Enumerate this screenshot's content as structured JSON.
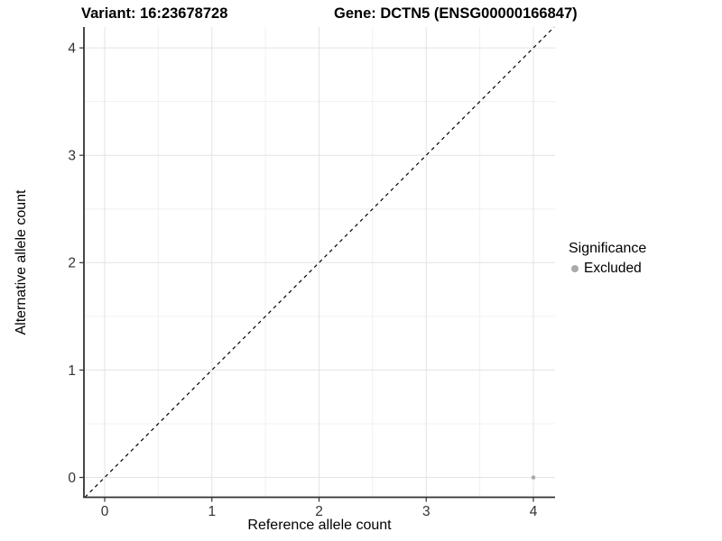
{
  "header": {
    "variant_title": "Variant: 16:23678728",
    "gene_title": "Gene: DCTN5 (ENSG00000166847)"
  },
  "chart_data": {
    "type": "scatter",
    "title": {
      "left": "Variant: 16:23678728",
      "right": "Gene: DCTN5 (ENSG00000166847)"
    },
    "xlabel": "Reference allele count",
    "ylabel": "Alternative allele count",
    "xlim": [
      -0.19,
      4.2
    ],
    "ylim": [
      -0.19,
      4.2
    ],
    "x_ticks": [
      0,
      1,
      2,
      3,
      4
    ],
    "y_ticks": [
      0,
      1,
      2,
      3,
      4
    ],
    "x_minor_ticks": [
      0.5,
      1.5,
      2.5,
      3.5
    ],
    "y_minor_ticks": [
      0.5,
      1.5,
      2.5,
      3.5
    ],
    "grid": "major+minor",
    "series": [
      {
        "name": "Excluded",
        "color": "#aaaaaa",
        "points": [
          {
            "x": 4,
            "y": 0
          }
        ]
      }
    ],
    "reference_line": {
      "type": "identity y=x",
      "style": "dashed",
      "color": "#000000"
    },
    "legend": {
      "title": "Significance",
      "position": "right",
      "entries": [
        {
          "label": "Excluded",
          "color": "#aaaaaa"
        }
      ]
    },
    "colors": {
      "grid_major": "#e3e3e3",
      "grid_minor": "#f0f0f0",
      "axis_line": "#333333",
      "tick_text": "#333333",
      "point": "#aaaaaa"
    }
  }
}
